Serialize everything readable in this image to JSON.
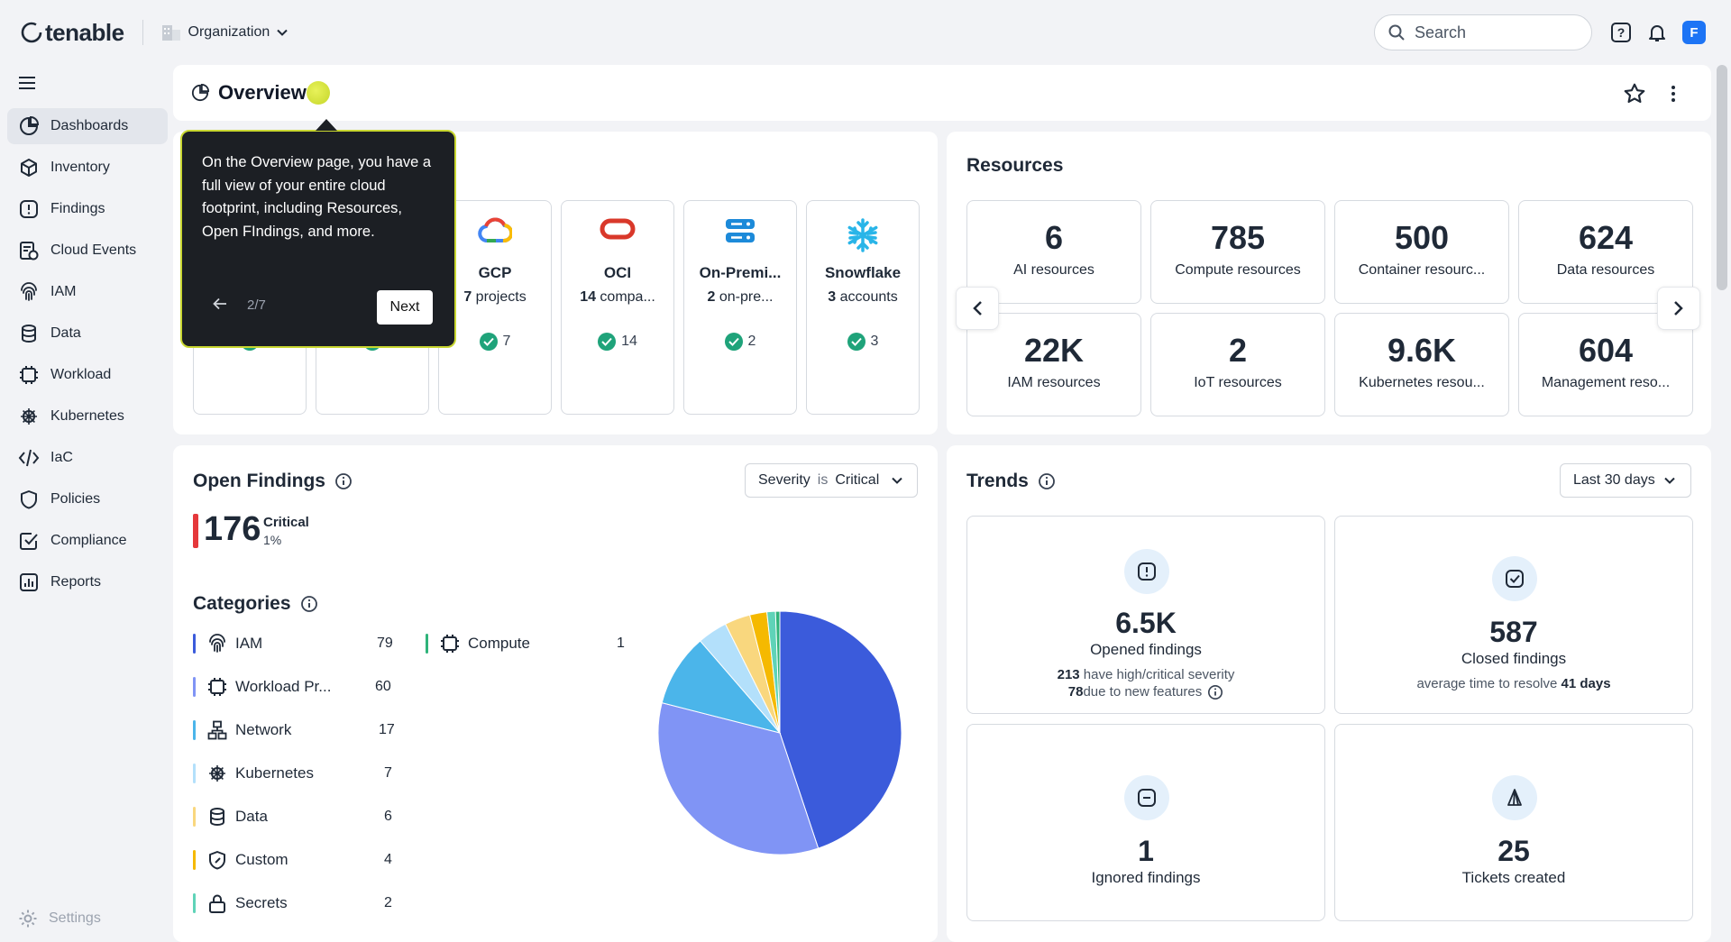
{
  "brand": {
    "logo_text": "tenable"
  },
  "header": {
    "org_label": "Organization",
    "search_placeholder": "Search",
    "avatar_initial": "F"
  },
  "sidebar": {
    "items": [
      {
        "label": "Dashboards",
        "icon": "dashboard-icon",
        "active": true
      },
      {
        "label": "Inventory",
        "icon": "cube-icon"
      },
      {
        "label": "Findings",
        "icon": "alert-icon"
      },
      {
        "label": "Cloud Events",
        "icon": "cloud-events-icon"
      },
      {
        "label": "IAM",
        "icon": "fingerprint-icon"
      },
      {
        "label": "Data",
        "icon": "database-icon"
      },
      {
        "label": "Workload",
        "icon": "chip-icon"
      },
      {
        "label": "Kubernetes",
        "icon": "helm-icon"
      },
      {
        "label": "IaC",
        "icon": "code-icon"
      },
      {
        "label": "Policies",
        "icon": "shield-icon"
      },
      {
        "label": "Compliance",
        "icon": "checkbox-icon"
      },
      {
        "label": "Reports",
        "icon": "report-icon"
      }
    ],
    "settings_label": "Settings"
  },
  "overview": {
    "title": "Overview"
  },
  "tooltip": {
    "text": "On the Overview page, you have a full view of your entire cloud footprint, including Resources, Open FIndings, and more.",
    "step": "2/7",
    "next_label": "Next"
  },
  "providers": [
    {
      "name": "GCP",
      "count_bold": "7",
      "desc": " projects",
      "check_count": "7",
      "icon": "gcp-icon"
    },
    {
      "name": "OCI",
      "count_bold": "14",
      "desc": " compa...",
      "check_count": "14",
      "icon": "oci-icon"
    },
    {
      "name": "On-Premi...",
      "count_bold": "2",
      "desc": " on-pre...",
      "check_count": "2",
      "icon": "server-icon"
    },
    {
      "name": "Snowflake",
      "count_bold": "3",
      "desc": " accounts",
      "check_count": "3",
      "icon": "snowflake-icon"
    }
  ],
  "resources": {
    "title": "Resources",
    "tiles": [
      {
        "value": "6",
        "label": "AI resources"
      },
      {
        "value": "785",
        "label": "Compute resources"
      },
      {
        "value": "500",
        "label": "Container resourc..."
      },
      {
        "value": "624",
        "label": "Data resources"
      },
      {
        "value": "22K",
        "label": "IAM resources"
      },
      {
        "value": "2",
        "label": "IoT resources"
      },
      {
        "value": "9.6K",
        "label": "Kubernetes resou..."
      },
      {
        "value": "604",
        "label": "Management reso..."
      }
    ]
  },
  "open_findings": {
    "title": "Open Findings",
    "filter_field": "Severity",
    "filter_op": "is",
    "filter_value": "Critical",
    "count": "176",
    "severity": "Critical",
    "percent": "1%",
    "categories_title": "Categories",
    "categories": [
      {
        "label": "IAM",
        "count": "79",
        "color": "#3b5bdb",
        "icon": "fingerprint-icon"
      },
      {
        "label": "Workload Pr...",
        "count": "60",
        "color": "#8094f5",
        "icon": "chip-icon"
      },
      {
        "label": "Network",
        "count": "17",
        "color": "#4bb5ea",
        "icon": "network-icon"
      },
      {
        "label": "Kubernetes",
        "count": "7",
        "color": "#b3e0fb",
        "icon": "helm-icon"
      },
      {
        "label": "Data",
        "count": "6",
        "color": "#f9d77e",
        "icon": "database-icon"
      },
      {
        "label": "Custom",
        "count": "4",
        "color": "#f5b900",
        "icon": "custom-icon"
      },
      {
        "label": "Secrets",
        "count": "2",
        "color": "#5fd3b8",
        "icon": "lock-icon"
      },
      {
        "label": "Compute",
        "count": "1",
        "color": "#2fb37a",
        "icon": "chip-icon"
      }
    ]
  },
  "trends": {
    "title": "Trends",
    "range_label": "Last 30 days",
    "opened": {
      "value": "6.5K",
      "label": "Opened findings",
      "line1_bold": "213",
      "line1": " have high/critical severity",
      "line2_bold": "78",
      "line2": " due to new features"
    },
    "closed": {
      "value": "587",
      "label": "Closed findings",
      "line_pre": "average time to resolve ",
      "line_bold": "41 days"
    },
    "ignored": {
      "value": "1",
      "label": "Ignored findings"
    },
    "tickets": {
      "value": "25",
      "label": "Tickets created"
    }
  }
}
